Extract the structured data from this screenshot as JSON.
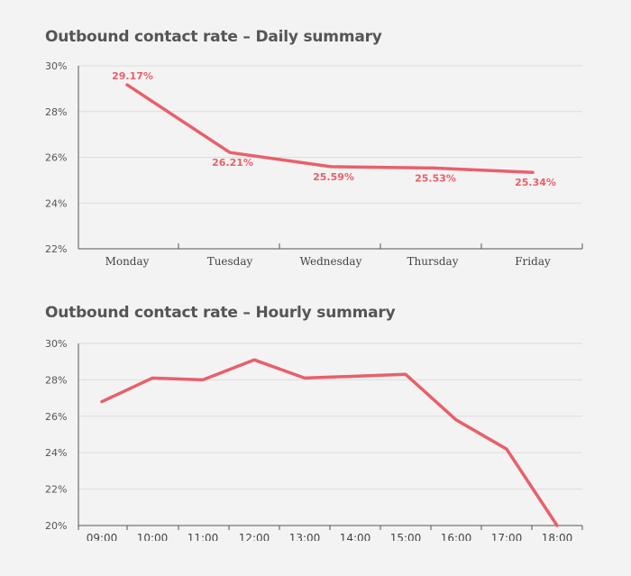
{
  "chart_data": [
    {
      "type": "line",
      "title": "Outbound contact rate – Daily summary",
      "xlabel": "",
      "ylabel": "",
      "categories": [
        "Monday",
        "Tuesday",
        "Wednesday",
        "Thursday",
        "Friday"
      ],
      "series": [
        {
          "name": "Outbound contact rate",
          "values": [
            29.17,
            26.21,
            25.59,
            25.53,
            25.34
          ]
        }
      ],
      "data_labels": [
        "29.17%",
        "26.21%",
        "25.59%",
        "25.53%",
        "25.34%"
      ],
      "ylim": [
        22,
        30
      ],
      "yticks": [
        22,
        24,
        26,
        28,
        30
      ],
      "ytick_labels": [
        "22%",
        "24%",
        "26%",
        "28%",
        "30%"
      ],
      "grid": true,
      "color": "#e8606a"
    },
    {
      "type": "line",
      "title": "Outbound contact rate – Hourly summary",
      "xlabel": "",
      "ylabel": "",
      "categories": [
        "09:00",
        "10:00",
        "11:00",
        "12:00",
        "13:00",
        "14:00",
        "15:00",
        "16:00",
        "17:00",
        "18:00"
      ],
      "series": [
        {
          "name": "Outbound contact rate",
          "values": [
            26.8,
            28.1,
            28.0,
            29.1,
            28.1,
            null,
            28.3,
            25.8,
            24.2,
            20.0
          ]
        }
      ],
      "ylim": [
        20,
        30
      ],
      "yticks": [
        20,
        22,
        24,
        26,
        28,
        30
      ],
      "ytick_labels": [
        "20%",
        "22%",
        "24%",
        "26%",
        "28%",
        "30%"
      ],
      "grid": true,
      "color": "#e8606a"
    }
  ]
}
